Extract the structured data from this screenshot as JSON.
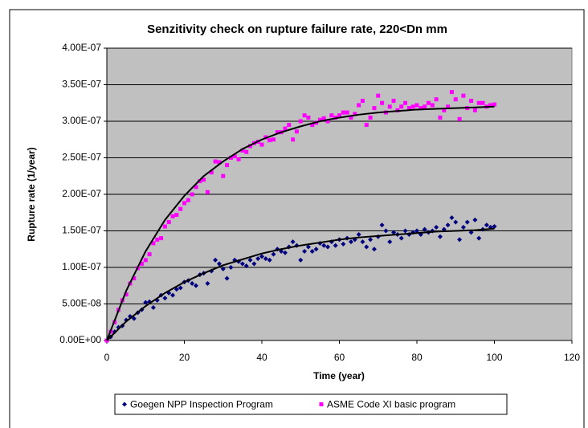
{
  "chart_data": {
    "type": "scatter",
    "title": "Senzitivity check on rupture failure rate, 220<Dn mm",
    "x_label": "Time (year)",
    "y_label": "Rupture rate (1/year)",
    "xlim": [
      0,
      120
    ],
    "xticks": [
      0,
      20,
      40,
      60,
      80,
      100,
      120
    ],
    "ylim": [
      0,
      4e-07
    ],
    "yticks": [
      {
        "value": 0,
        "label": "0.00E+00"
      },
      {
        "value": 5e-08,
        "label": "5.00E-08"
      },
      {
        "value": 1e-07,
        "label": "1.00E-07"
      },
      {
        "value": 1.5e-07,
        "label": "1.50E-07"
      },
      {
        "value": 2e-07,
        "label": "2.00E-07"
      },
      {
        "value": 2.5e-07,
        "label": "2.50E-07"
      },
      {
        "value": 3e-07,
        "label": "3.00E-07"
      },
      {
        "value": 3.5e-07,
        "label": "3.50E-07"
      },
      {
        "value": 4e-07,
        "label": "4.00E-07"
      }
    ],
    "grid": true,
    "legend": "bottom",
    "x": [
      0,
      1,
      2,
      3,
      4,
      5,
      6,
      7,
      8,
      9,
      10,
      11,
      12,
      13,
      14,
      15,
      16,
      17,
      18,
      19,
      20,
      21,
      22,
      23,
      24,
      25,
      26,
      27,
      28,
      29,
      30,
      31,
      32,
      33,
      34,
      35,
      36,
      37,
      38,
      39,
      40,
      41,
      42,
      43,
      44,
      45,
      46,
      47,
      48,
      49,
      50,
      51,
      52,
      53,
      54,
      55,
      56,
      57,
      58,
      59,
      60,
      61,
      62,
      63,
      64,
      65,
      66,
      67,
      68,
      69,
      70,
      71,
      72,
      73,
      74,
      75,
      76,
      77,
      78,
      79,
      80,
      81,
      82,
      83,
      84,
      85,
      86,
      87,
      88,
      89,
      90,
      91,
      92,
      93,
      94,
      95,
      96,
      97,
      98,
      99,
      100
    ],
    "series": [
      {
        "name": "Goegen NPP Inspection Program",
        "color": "#000080",
        "marker": "diamond",
        "values": [
          0,
          5e-09,
          1.2e-08,
          1.8e-08,
          2e-08,
          2.8e-08,
          3.3e-08,
          3e-08,
          3.8e-08,
          4.2e-08,
          5.2e-08,
          5.3e-08,
          4.5e-08,
          5.5e-08,
          6.2e-08,
          5.8e-08,
          6.5e-08,
          6.2e-08,
          7e-08,
          7.2e-08,
          8e-08,
          8.2e-08,
          7.8e-08,
          7.5e-08,
          9e-08,
          9.2e-08,
          7.8e-08,
          9.5e-08,
          1.1e-07,
          1.05e-07,
          9.8e-08,
          8.5e-08,
          1e-07,
          1.1e-07,
          1.08e-07,
          1.05e-07,
          1.02e-07,
          1.1e-07,
          1.05e-07,
          1.12e-07,
          1.15e-07,
          1.12e-07,
          1.1e-07,
          1.18e-07,
          1.25e-07,
          1.22e-07,
          1.2e-07,
          1.28e-07,
          1.35e-07,
          1.3e-07,
          1.1e-07,
          1.22e-07,
          1.28e-07,
          1.22e-07,
          1.25e-07,
          1.33e-07,
          1.3e-07,
          1.28e-07,
          1.35e-07,
          1.3e-07,
          1.38e-07,
          1.32e-07,
          1.4e-07,
          1.35e-07,
          1.38e-07,
          1.45e-07,
          1.35e-07,
          1.28e-07,
          1.38e-07,
          1.25e-07,
          1.42e-07,
          1.58e-07,
          1.5e-07,
          1.35e-07,
          1.48e-07,
          1.45e-07,
          1.4e-07,
          1.5e-07,
          1.45e-07,
          1.48e-07,
          1.5e-07,
          1.45e-07,
          1.52e-07,
          1.48e-07,
          1.5e-07,
          1.55e-07,
          1.42e-07,
          1.52e-07,
          1.58e-07,
          1.68e-07,
          1.62e-07,
          1.38e-07,
          1.55e-07,
          1.62e-07,
          1.48e-07,
          1.65e-07,
          1.4e-07,
          1.52e-07,
          1.58e-07,
          1.55e-07,
          1.56e-07
        ]
      },
      {
        "name": "ASME Code XI basic program",
        "color": "#ff00ff",
        "marker": "square",
        "values": [
          0,
          1.2e-08,
          2.5e-08,
          4.2e-08,
          5.5e-08,
          6.3e-08,
          7.8e-08,
          8.5e-08,
          9.9e-08,
          1.05e-07,
          1.1e-07,
          1.18e-07,
          1.33e-07,
          1.38e-07,
          1.4e-07,
          1.56e-07,
          1.62e-07,
          1.7e-07,
          1.72e-07,
          1.8e-07,
          1.88e-07,
          1.92e-07,
          2e-07,
          2.1e-07,
          2.18e-07,
          2.2e-07,
          2.03e-07,
          2.3e-07,
          2.45e-07,
          2.44e-07,
          2.25e-07,
          2.4e-07,
          2.5e-07,
          2.52e-07,
          2.48e-07,
          2.6e-07,
          2.58e-07,
          2.66e-07,
          2.7e-07,
          2.72e-07,
          2.68e-07,
          2.78e-07,
          2.74e-07,
          2.75e-07,
          2.85e-07,
          2.85e-07,
          2.9e-07,
          2.95e-07,
          2.75e-07,
          2.86e-07,
          3e-07,
          3.08e-07,
          3.05e-07,
          2.95e-07,
          2.98e-07,
          3.02e-07,
          3.04e-07,
          3e-07,
          3.08e-07,
          3.05e-07,
          3.08e-07,
          3.12e-07,
          3.12e-07,
          3.05e-07,
          3.1e-07,
          3.22e-07,
          3.28e-07,
          2.95e-07,
          3.05e-07,
          3.18e-07,
          3.35e-07,
          3.25e-07,
          3.12e-07,
          3.2e-07,
          3.28e-07,
          3.15e-07,
          3.2e-07,
          3.25e-07,
          3.18e-07,
          3.2e-07,
          3.22e-07,
          3.18e-07,
          3.2e-07,
          3.25e-07,
          3.22e-07,
          3.3e-07,
          3.05e-07,
          3.15e-07,
          3.2e-07,
          3.4e-07,
          3.3e-07,
          3.03e-07,
          3.35e-07,
          3.18e-07,
          3.28e-07,
          3.15e-07,
          3.25e-07,
          3.25e-07,
          3.2e-07,
          3.22e-07,
          3.23e-07
        ]
      }
    ],
    "trendlines": [
      {
        "color": "#000000",
        "x": [
          0,
          5,
          10,
          15,
          20,
          25,
          30,
          35,
          40,
          45,
          50,
          55,
          60,
          65,
          70,
          75,
          80,
          85,
          90,
          95,
          100
        ],
        "values": [
          0,
          2.6e-08,
          4.7e-08,
          6.5e-08,
          8e-08,
          9.2e-08,
          1.03e-07,
          1.11e-07,
          1.19e-07,
          1.25e-07,
          1.3e-07,
          1.34e-07,
          1.38e-07,
          1.41e-07,
          1.43e-07,
          1.45e-07,
          1.47e-07,
          1.49e-07,
          1.5e-07,
          1.51e-07,
          1.53e-07
        ]
      },
      {
        "color": "#000000",
        "x": [
          0,
          5,
          10,
          15,
          20,
          25,
          30,
          35,
          40,
          45,
          50,
          55,
          60,
          65,
          70,
          75,
          80,
          85,
          90,
          95,
          100
        ],
        "values": [
          0,
          6.8e-08,
          1.22e-07,
          1.65e-07,
          1.98e-07,
          2.25e-07,
          2.45e-07,
          2.62e-07,
          2.75e-07,
          2.85e-07,
          2.93e-07,
          3e-07,
          3.05e-07,
          3.09e-07,
          3.12e-07,
          3.14e-07,
          3.16e-07,
          3.17e-07,
          3.18e-07,
          3.19e-07,
          3.2e-07
        ]
      }
    ]
  }
}
